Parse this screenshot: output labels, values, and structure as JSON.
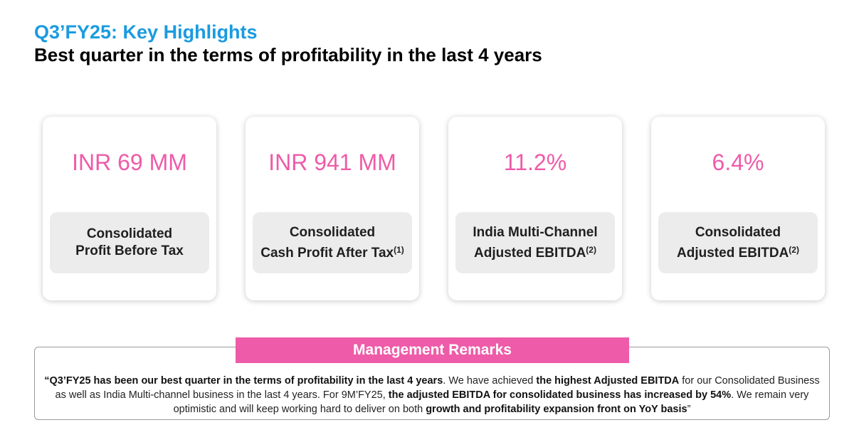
{
  "header": {
    "title": "Q3’FY25: Key Highlights",
    "subtitle": "Best quarter in the terms of profitability in the last 4 years"
  },
  "cards": [
    {
      "value": "INR 69 MM",
      "label_line1": "Consolidated",
      "label_line2": "Profit Before Tax",
      "footnote": ""
    },
    {
      "value": "INR 941 MM",
      "label_line1": "Consolidated",
      "label_line2": "Cash Profit After Tax",
      "footnote": "(1)"
    },
    {
      "value": "11.2%",
      "label_line1": "India Multi-Channel",
      "label_line2": "Adjusted EBITDA",
      "footnote": "(2)"
    },
    {
      "value": "6.4%",
      "label_line1": "Consolidated",
      "label_line2": "Adjusted EBITDA",
      "footnote": "(2)"
    }
  ],
  "remarks": {
    "header": "Management Remarks",
    "s1": "“Q3’FY25 has been our best quarter in the terms of profitability in the last 4 years",
    "s2": ". We have achieved ",
    "s3": "the highest Adjusted EBITDA",
    "s4": " for our Consolidated Business as well as India Multi-channel business in the last 4 years. For 9M’FY25, ",
    "s5": "the adjusted EBITDA for consolidated business has increased by 54%",
    "s6": ". We remain very optimistic and will keep working hard to deliver on both ",
    "s7": "growth and profitability expansion front on YoY basis",
    "s8": "”"
  },
  "colors": {
    "title_blue": "#1a9be0",
    "accent_pink": "#ee5ba8",
    "label_box_gray": "#ececec"
  }
}
